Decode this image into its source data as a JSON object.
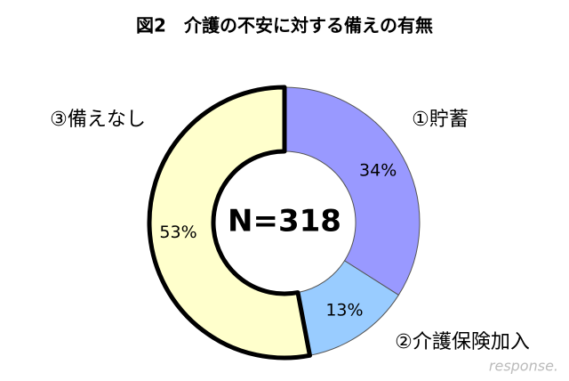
{
  "chart_data": {
    "type": "donut",
    "title": "図2　介護の不安に対する備えの有無",
    "center_text": "N=318",
    "categories": [
      "①貯蓄",
      "②介護保険加入",
      "③備えなし"
    ],
    "values": [
      34,
      13,
      53
    ],
    "value_labels": [
      "34%",
      "13%",
      "53%"
    ],
    "colors": [
      "#9999ff",
      "#99ccff",
      "#ffffcc"
    ],
    "outlined": [
      false,
      false,
      true
    ],
    "watermark": "response."
  }
}
